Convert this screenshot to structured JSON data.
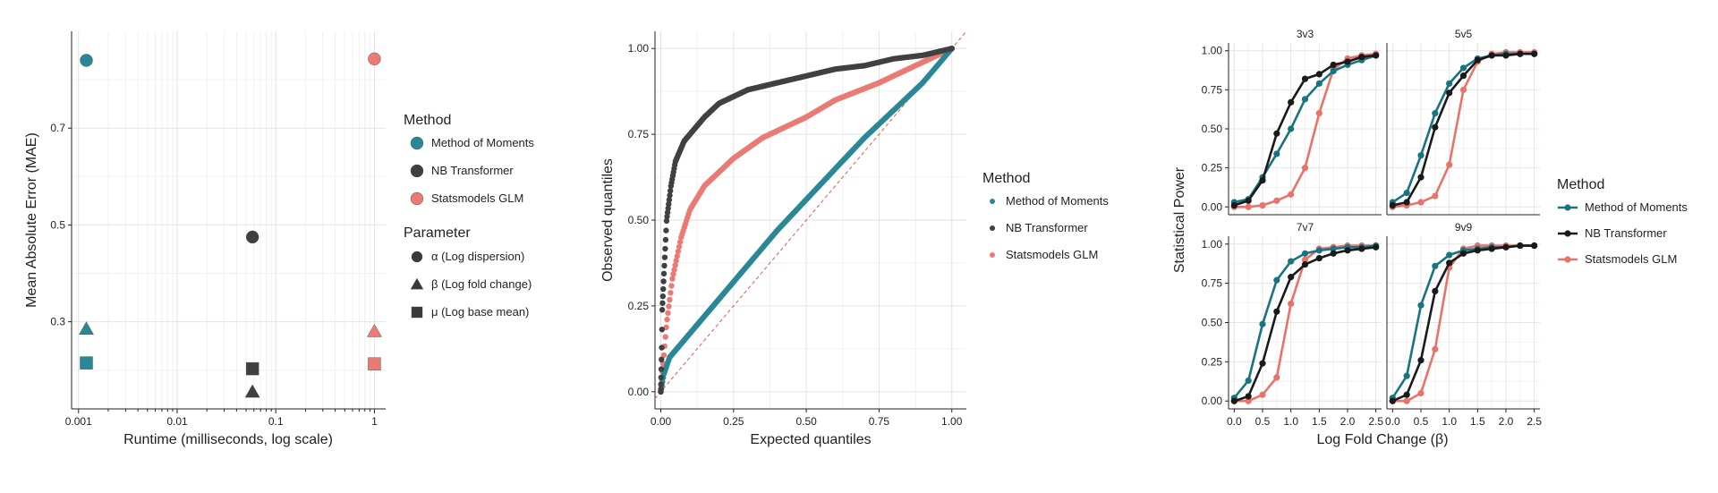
{
  "colors": {
    "mom": "#2a8795",
    "nbt": "#404040",
    "glm": "#ea7b74",
    "mom_dark": "#187480",
    "glm_line": "#e8736b"
  },
  "chart_data": [
    {
      "type": "scatter",
      "xlabel": "Runtime (milliseconds, log scale)",
      "ylabel": "Mean Absolute Error (MAE)",
      "x_scale": "log",
      "xlim": [
        0.00085,
        1.3
      ],
      "ylim": [
        0.12,
        0.9
      ],
      "x_ticks": [
        0.001,
        0.01,
        0.1,
        1
      ],
      "x_tick_labels": [
        "0.001",
        "0.01",
        "0.1",
        "1"
      ],
      "y_ticks": [
        0.3,
        0.5,
        0.7
      ],
      "y_tick_labels": [
        "0.3",
        "0.5",
        "0.7"
      ],
      "legend_method_title": "Method",
      "legend_parameter_title": "Parameter",
      "methods": [
        {
          "key": "mom",
          "name": "Method of Moments"
        },
        {
          "key": "nbt",
          "name": "NB Transformer"
        },
        {
          "key": "glm",
          "name": "Statsmodels GLM"
        }
      ],
      "parameters": [
        {
          "shape": "circle",
          "name": "α (Log dispersion)"
        },
        {
          "shape": "triangle",
          "name": "β (Log fold change)"
        },
        {
          "shape": "square",
          "name": "μ (Log base mean)"
        }
      ],
      "points": [
        {
          "method": "mom",
          "shape": "circle",
          "x": 0.0012,
          "y": 0.84
        },
        {
          "method": "mom",
          "shape": "triangle",
          "x": 0.0012,
          "y": 0.285
        },
        {
          "method": "mom",
          "shape": "square",
          "x": 0.0012,
          "y": 0.215
        },
        {
          "method": "nbt",
          "shape": "circle",
          "x": 0.058,
          "y": 0.475
        },
        {
          "method": "nbt",
          "shape": "square",
          "x": 0.058,
          "y": 0.203
        },
        {
          "method": "nbt",
          "shape": "triangle",
          "x": 0.058,
          "y": 0.155
        },
        {
          "method": "glm",
          "shape": "circle",
          "x": 1.0,
          "y": 0.843
        },
        {
          "method": "glm",
          "shape": "triangle",
          "x": 1.0,
          "y": 0.28
        },
        {
          "method": "glm",
          "shape": "square",
          "x": 1.0,
          "y": 0.213
        }
      ]
    },
    {
      "type": "scatter",
      "subtype": "qq",
      "xlabel": "Expected quantiles",
      "ylabel": "Observed quantiles",
      "xlim": [
        -0.02,
        1.05
      ],
      "ylim": [
        -0.05,
        1.05
      ],
      "ticks": [
        0,
        0.25,
        0.5,
        0.75,
        1
      ],
      "tick_labels": [
        "0.00",
        "0.25",
        "0.50",
        "0.75",
        "1.00"
      ],
      "legend_title": "Method",
      "series": [
        {
          "key": "mom",
          "name": "Method of Moments",
          "curve": [
            [
              0,
              0
            ],
            [
              0.01,
              0.05
            ],
            [
              0.03,
              0.1
            ],
            [
              0.1,
              0.17
            ],
            [
              0.2,
              0.27
            ],
            [
              0.3,
              0.37
            ],
            [
              0.4,
              0.47
            ],
            [
              0.5,
              0.56
            ],
            [
              0.6,
              0.65
            ],
            [
              0.7,
              0.74
            ],
            [
              0.8,
              0.82
            ],
            [
              0.9,
              0.9
            ],
            [
              1,
              1
            ]
          ]
        },
        {
          "key": "nbt",
          "name": "NB Transformer",
          "curve": [
            [
              0,
              0
            ],
            [
              0.003,
              0.12
            ],
            [
              0.005,
              0.24
            ],
            [
              0.01,
              0.33
            ],
            [
              0.02,
              0.5
            ],
            [
              0.035,
              0.6
            ],
            [
              0.05,
              0.67
            ],
            [
              0.08,
              0.73
            ],
            [
              0.15,
              0.8
            ],
            [
              0.2,
              0.84
            ],
            [
              0.3,
              0.88
            ],
            [
              0.4,
              0.9
            ],
            [
              0.5,
              0.92
            ],
            [
              0.6,
              0.94
            ],
            [
              0.7,
              0.95
            ],
            [
              0.8,
              0.97
            ],
            [
              0.9,
              0.98
            ],
            [
              1,
              1
            ]
          ]
        },
        {
          "key": "glm",
          "name": "Statsmodels GLM",
          "curve": [
            [
              0,
              0
            ],
            [
              0.01,
              0.1
            ],
            [
              0.02,
              0.2
            ],
            [
              0.04,
              0.33
            ],
            [
              0.07,
              0.45
            ],
            [
              0.1,
              0.53
            ],
            [
              0.15,
              0.6
            ],
            [
              0.25,
              0.68
            ],
            [
              0.35,
              0.74
            ],
            [
              0.5,
              0.8
            ],
            [
              0.6,
              0.85
            ],
            [
              0.75,
              0.9
            ],
            [
              0.9,
              0.96
            ],
            [
              1,
              1
            ]
          ]
        }
      ]
    },
    {
      "type": "line",
      "xlabel": "Log Fold Change (β)",
      "ylabel": "Statistical Power",
      "xlim": [
        -0.1,
        2.6
      ],
      "ylim": [
        -0.05,
        1.05
      ],
      "x_ticks": [
        0,
        0.5,
        1,
        1.5,
        2,
        2.5
      ],
      "x_tick_labels": [
        "0.0",
        "0.5",
        "1.0",
        "1.5",
        "2.0",
        "2.5"
      ],
      "y_ticks": [
        0,
        0.25,
        0.5,
        0.75,
        1
      ],
      "y_tick_labels": [
        "0.00",
        "0.25",
        "0.50",
        "0.75",
        "1.00"
      ],
      "x": [
        0,
        0.25,
        0.5,
        0.75,
        1,
        1.25,
        1.5,
        1.75,
        2,
        2.25,
        2.5
      ],
      "legend_title": "Method",
      "panels": [
        {
          "title": "3v3",
          "series": [
            {
              "key": "mom",
              "name": "Method of Moments",
              "values": [
                0.03,
                0.05,
                0.19,
                0.34,
                0.5,
                0.69,
                0.79,
                0.87,
                0.91,
                0.94,
                0.97
              ]
            },
            {
              "key": "nbt",
              "name": "NB Transformer",
              "values": [
                0.01,
                0.04,
                0.17,
                0.47,
                0.67,
                0.82,
                0.85,
                0.91,
                0.93,
                0.96,
                0.97
              ]
            },
            {
              "key": "glm",
              "name": "Statsmodels GLM",
              "values": [
                0,
                0,
                0.01,
                0.04,
                0.08,
                0.25,
                0.6,
                0.88,
                0.95,
                0.97,
                0.98
              ]
            }
          ]
        },
        {
          "title": "5v5",
          "series": [
            {
              "key": "mom",
              "name": "Method of Moments",
              "values": [
                0.03,
                0.09,
                0.33,
                0.6,
                0.79,
                0.89,
                0.95,
                0.97,
                0.98,
                0.98,
                0.98
              ]
            },
            {
              "key": "nbt",
              "name": "NB Transformer",
              "values": [
                0.01,
                0.03,
                0.19,
                0.51,
                0.73,
                0.84,
                0.94,
                0.97,
                0.97,
                0.98,
                0.98
              ]
            },
            {
              "key": "glm",
              "name": "Statsmodels GLM",
              "values": [
                0,
                0.01,
                0.03,
                0.07,
                0.27,
                0.75,
                0.93,
                0.98,
                0.99,
                0.99,
                0.99
              ]
            }
          ]
        },
        {
          "title": "7v7",
          "series": [
            {
              "key": "mom",
              "name": "Method of Moments",
              "values": [
                0.02,
                0.13,
                0.49,
                0.77,
                0.89,
                0.94,
                0.96,
                0.97,
                0.98,
                0.98,
                0.99
              ]
            },
            {
              "key": "nbt",
              "name": "NB Transformer",
              "values": [
                0,
                0.03,
                0.24,
                0.57,
                0.79,
                0.87,
                0.91,
                0.94,
                0.96,
                0.97,
                0.98
              ]
            },
            {
              "key": "glm",
              "name": "Statsmodels GLM",
              "values": [
                0,
                0,
                0.04,
                0.15,
                0.62,
                0.9,
                0.97,
                0.98,
                0.99,
                0.99,
                0.99
              ]
            }
          ]
        },
        {
          "title": "9v9",
          "series": [
            {
              "key": "mom",
              "name": "Method of Moments",
              "values": [
                0.02,
                0.16,
                0.61,
                0.86,
                0.93,
                0.96,
                0.97,
                0.98,
                0.98,
                0.99,
                0.99
              ]
            },
            {
              "key": "nbt",
              "name": "NB Transformer",
              "values": [
                0,
                0.04,
                0.26,
                0.7,
                0.88,
                0.94,
                0.96,
                0.97,
                0.98,
                0.99,
                0.99
              ]
            },
            {
              "key": "glm",
              "name": "Statsmodels GLM",
              "values": [
                0,
                0,
                0.05,
                0.33,
                0.85,
                0.97,
                0.99,
                0.99,
                0.99,
                0.99,
                0.99
              ]
            }
          ]
        }
      ]
    }
  ]
}
